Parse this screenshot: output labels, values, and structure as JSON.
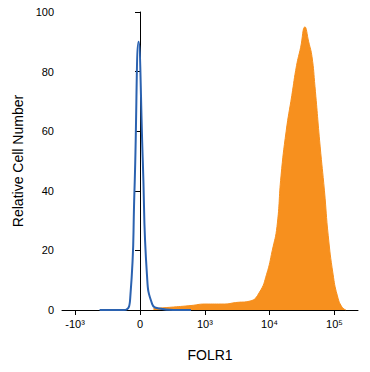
{
  "chart_data": {
    "type": "histogram",
    "x_label": "FOLR1",
    "y_label": "Relative Cell Number",
    "log": "x",
    "grid": false,
    "xlim": [
      -1600,
      230000
    ],
    "xticks": [
      {
        "value": -1000,
        "label": "-10³"
      },
      0,
      {
        "value": 1000,
        "label": "10³"
      },
      {
        "value": 10000,
        "label": "10⁴"
      },
      {
        "value": 100000,
        "label": "10⁵"
      }
    ],
    "ylim": [
      0,
      100
    ],
    "yticks": [
      0,
      20,
      40,
      60,
      80,
      100
    ],
    "series": [
      {
        "type": "area",
        "color": "#f7901e",
        "x": [
          100,
          300,
          600,
          1000,
          2000,
          3000,
          5000,
          7000,
          9000,
          11000,
          13000,
          15000,
          18000,
          22000,
          26000,
          30000,
          35000,
          40000,
          45000,
          50000,
          60000,
          70000,
          80000,
          95000,
          110000,
          130000,
          150000
        ],
        "values": [
          0.5,
          1,
          1.5,
          2,
          2,
          2.5,
          3,
          6,
          12,
          20,
          28,
          45,
          60,
          72,
          82,
          88,
          95,
          90,
          85,
          75,
          55,
          40,
          25,
          12,
          5,
          1,
          0
        ]
      },
      {
        "type": "line",
        "color": "#2b62b0",
        "x": [
          -400,
          -120,
          -70,
          -40,
          -10,
          20,
          50,
          90,
          150,
          300,
          600
        ],
        "values": [
          0,
          0,
          5,
          40,
          90,
          50,
          12,
          2,
          0.5,
          0,
          0
        ]
      }
    ]
  }
}
